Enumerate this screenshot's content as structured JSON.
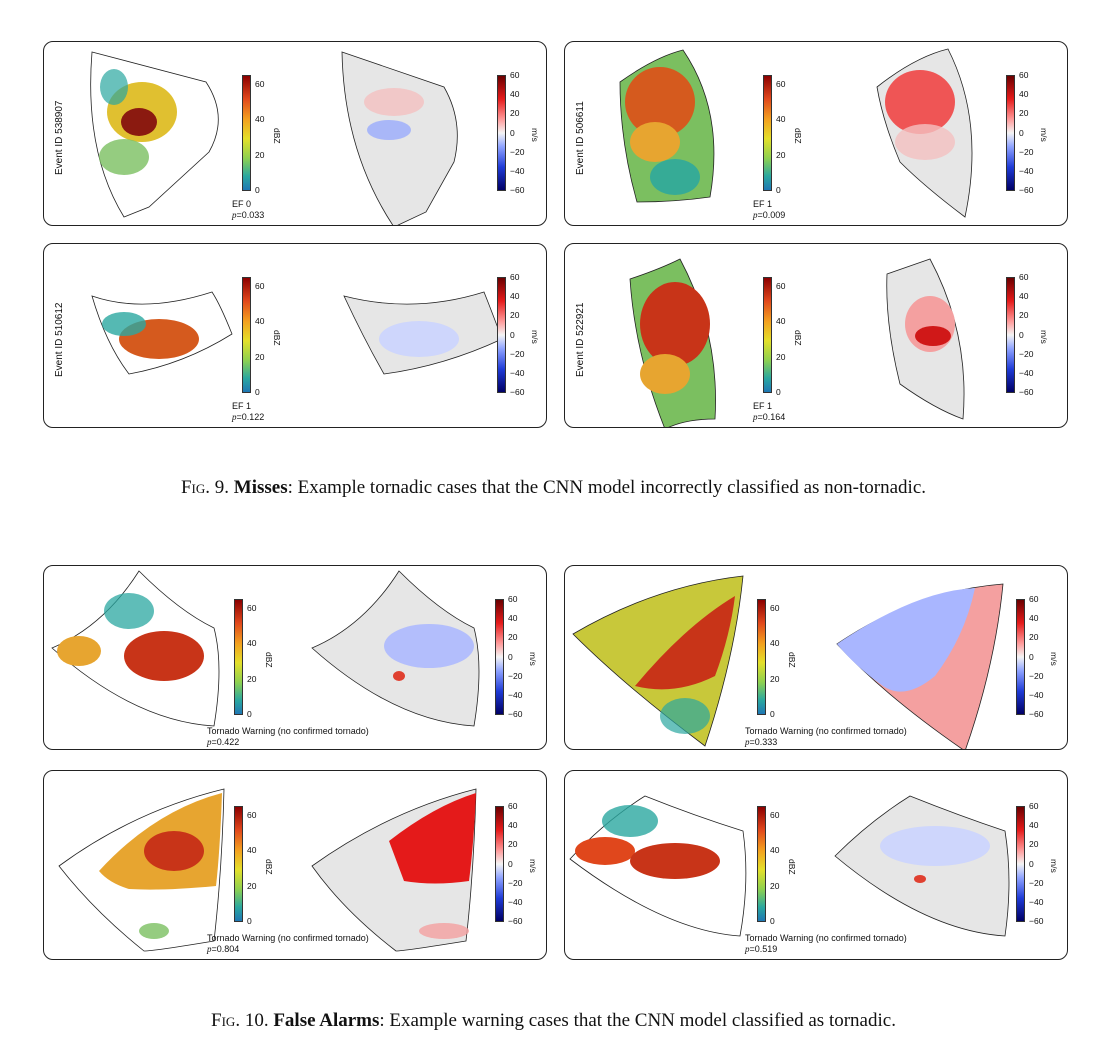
{
  "figure9": {
    "fig_label": "Fig. 9.",
    "bold_label": "Misses",
    "caption_text": ": Example tornadic cases that the CNN model incorrectly classified as non-tornadic.",
    "panels": [
      {
        "event_id": "Event ID 538907",
        "class_label": "EF 0",
        "p_label": "p",
        "p_value": "=0.033"
      },
      {
        "event_id": "Event ID 506611",
        "class_label": "EF 1",
        "p_label": "p",
        "p_value": "=0.009"
      },
      {
        "event_id": "Event ID 510612",
        "class_label": "EF 1",
        "p_label": "p",
        "p_value": "=0.122"
      },
      {
        "event_id": "Event ID 522921",
        "class_label": "EF 1",
        "p_label": "p",
        "p_value": "=0.164"
      }
    ]
  },
  "figure10": {
    "fig_label": "Fig. 10.",
    "bold_label": "False Alarms",
    "caption_text": ": Example warning cases that the CNN model classified as tornadic.",
    "panels": [
      {
        "event_id": "",
        "class_label": "Tornado Warning (no confirmed tornado)",
        "p_label": "p",
        "p_value": "=0.422"
      },
      {
        "event_id": "",
        "class_label": "Tornado Warning (no confirmed tornado)",
        "p_label": "p",
        "p_value": "=0.333"
      },
      {
        "event_id": "",
        "class_label": "Tornado Warning (no confirmed tornado)",
        "p_label": "p",
        "p_value": "=0.804"
      },
      {
        "event_id": "",
        "class_label": "Tornado Warning (no confirmed tornado)",
        "p_label": "p",
        "p_value": "=0.519"
      }
    ]
  },
  "colorbars": {
    "reflectivity": {
      "unit": "dBZ",
      "ticks": [
        "60",
        "40",
        "20",
        "0"
      ]
    },
    "velocity": {
      "unit": "m/s",
      "ticks": [
        "60",
        "40",
        "20",
        "0",
        "−20",
        "−40",
        "−60"
      ]
    }
  },
  "colors": {
    "panel_border": "#222222",
    "velocity_background": "#e6e6e6"
  }
}
